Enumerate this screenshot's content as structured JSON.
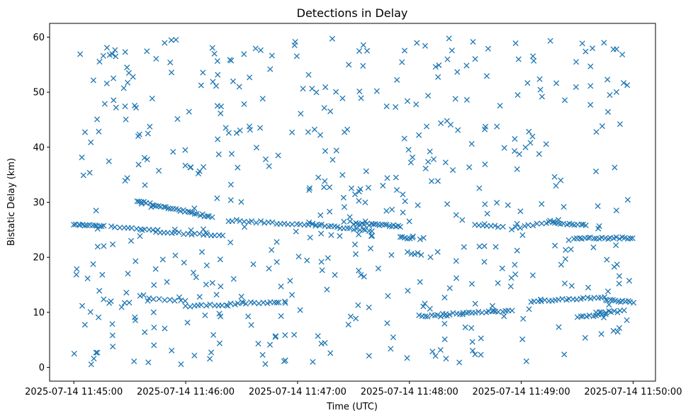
{
  "chart_data": {
    "type": "scatter",
    "title": "Detections in Delay",
    "xlabel": "Time (UTC)",
    "ylabel": "Bistatic Delay (km)",
    "marker": "x",
    "color": "#1f77b4",
    "grid": false,
    "xlim": [
      "2025-07-14 11:44:47",
      "2025-07-14 11:50:12"
    ],
    "ylim": [
      -2.5,
      62.5
    ],
    "x_tick_labels": [
      "2025-07-14 11:45:00",
      "2025-07-14 11:46:00",
      "2025-07-14 11:47:00",
      "2025-07-14 11:48:00",
      "2025-07-14 11:49:00",
      "2025-07-14 11:50:00"
    ],
    "y_tick_values": [
      0,
      10,
      20,
      30,
      40,
      50,
      60
    ],
    "y_tick_labels": [
      "0",
      "10",
      "20",
      "30",
      "40",
      "50",
      "60"
    ],
    "series": [
      {
        "kind": "tracks",
        "description_points": [
          {
            "x": "2025-07-14 11:45:00",
            "y": 26.0
          },
          {
            "x": "2025-07-14 11:45:04",
            "y": 26.0
          },
          {
            "x": "2025-07-14 11:45:08",
            "y": 25.9
          },
          {
            "x": "2025-07-14 11:45:12",
            "y": 25.8
          },
          {
            "x": "2025-07-14 11:45:16",
            "y": 25.7
          },
          {
            "x": "2025-07-14 11:45:28",
            "y": 25.4
          },
          {
            "x": "2025-07-14 11:45:32",
            "y": 25.2
          },
          {
            "x": "2025-07-14 11:45:36",
            "y": 25.1
          },
          {
            "x": "2025-07-14 11:45:40",
            "y": 25.0
          },
          {
            "x": "2025-07-14 11:45:34",
            "y": 30.2
          },
          {
            "x": "2025-07-14 11:45:40",
            "y": 29.9
          },
          {
            "x": "2025-07-14 11:45:46",
            "y": 29.6
          },
          {
            "x": "2025-07-14 11:45:52",
            "y": 29.0
          },
          {
            "x": "2025-07-14 11:45:58",
            "y": 28.5
          },
          {
            "x": "2025-07-14 11:46:04",
            "y": 28.0
          },
          {
            "x": "2025-07-14 11:46:10",
            "y": 27.4
          },
          {
            "x": "2025-07-14 11:45:45",
            "y": 24.6
          },
          {
            "x": "2025-07-14 11:45:55",
            "y": 24.3
          },
          {
            "x": "2025-07-14 11:46:05",
            "y": 24.1
          },
          {
            "x": "2025-07-14 11:46:15",
            "y": 24.0
          },
          {
            "x": "2025-07-14 11:45:45",
            "y": 12.3
          },
          {
            "x": "2025-07-14 11:45:55",
            "y": 11.5
          },
          {
            "x": "2025-07-14 11:46:05",
            "y": 11.1
          },
          {
            "x": "2025-07-14 11:46:20",
            "y": 11.3
          },
          {
            "x": "2025-07-14 11:46:35",
            "y": 11.7
          },
          {
            "x": "2025-07-14 11:46:50",
            "y": 12.0
          },
          {
            "x": "2025-07-14 11:46:25",
            "y": 26.6
          },
          {
            "x": "2025-07-14 11:46:40",
            "y": 26.2
          },
          {
            "x": "2025-07-14 11:47:00",
            "y": 25.8
          },
          {
            "x": "2025-07-14 11:47:20",
            "y": 24.8
          },
          {
            "x": "2025-07-14 11:47:30",
            "y": 26.0
          },
          {
            "x": "2025-07-14 11:47:45",
            "y": 25.6
          },
          {
            "x": "2025-07-14 11:47:53",
            "y": 23.5
          },
          {
            "x": "2025-07-14 11:48:00",
            "y": 20.7
          },
          {
            "x": "2025-07-14 11:48:05",
            "y": 9.3
          },
          {
            "x": "2025-07-14 11:48:20",
            "y": 9.7
          },
          {
            "x": "2025-07-14 11:48:40",
            "y": 10.1
          },
          {
            "x": "2025-07-14 11:48:55",
            "y": 10.4
          },
          {
            "x": "2025-07-14 11:48:40",
            "y": 25.7
          },
          {
            "x": "2025-07-14 11:49:05",
            "y": 26.5
          },
          {
            "x": "2025-07-14 11:49:20",
            "y": 26.0
          },
          {
            "x": "2025-07-14 11:49:35",
            "y": 23.5
          },
          {
            "x": "2025-07-14 11:50:00",
            "y": 23.5
          },
          {
            "x": "2025-07-14 11:49:10",
            "y": 12.2
          },
          {
            "x": "2025-07-14 11:49:25",
            "y": 12.6
          },
          {
            "x": "2025-07-14 11:49:40",
            "y": 10.0
          },
          {
            "x": "2025-07-14 11:49:55",
            "y": 12.2
          }
        ],
        "segments": [
          {
            "t0": 0,
            "t1": 16,
            "y0": 26.0,
            "y1": 25.7,
            "n": 14
          },
          {
            "t0": 20,
            "t1": 45,
            "y0": 25.5,
            "y1": 24.9,
            "n": 12
          },
          {
            "t0": 34,
            "t1": 74,
            "y0": 30.2,
            "y1": 27.3,
            "n": 32
          },
          {
            "t0": 44,
            "t1": 80,
            "y0": 24.7,
            "y1": 23.9,
            "n": 18
          },
          {
            "t0": 40,
            "t1": 60,
            "y0": 12.4,
            "y1": 12.2,
            "n": 8
          },
          {
            "t0": 60,
            "t1": 110,
            "y0": 11.1,
            "y1": 11.9,
            "n": 24
          },
          {
            "t0": 85,
            "t1": 130,
            "y0": 26.7,
            "y1": 25.8,
            "n": 22
          },
          {
            "t0": 128,
            "t1": 160,
            "y0": 26.0,
            "y1": 24.7,
            "n": 20
          },
          {
            "t0": 150,
            "t1": 175,
            "y0": 26.1,
            "y1": 25.7,
            "n": 22
          },
          {
            "t0": 175,
            "t1": 182,
            "y0": 23.7,
            "y1": 23.4,
            "n": 6
          },
          {
            "t0": 179,
            "t1": 186,
            "y0": 20.8,
            "y1": 20.6,
            "n": 5
          },
          {
            "t0": 185,
            "t1": 200,
            "y0": 9.3,
            "y1": 9.4,
            "n": 10
          },
          {
            "t0": 198,
            "t1": 235,
            "y0": 9.6,
            "y1": 10.4,
            "n": 22
          },
          {
            "t0": 215,
            "t1": 230,
            "y0": 25.8,
            "y1": 25.6,
            "n": 8
          },
          {
            "t0": 235,
            "t1": 260,
            "y0": 25.2,
            "y1": 26.8,
            "n": 12
          },
          {
            "t0": 255,
            "t1": 275,
            "y0": 26.3,
            "y1": 25.9,
            "n": 14
          },
          {
            "t0": 268,
            "t1": 300,
            "y0": 23.5,
            "y1": 23.5,
            "n": 22
          },
          {
            "t0": 245,
            "t1": 285,
            "y0": 12.0,
            "y1": 12.7,
            "n": 22
          },
          {
            "t0": 285,
            "t1": 300,
            "y0": 12.2,
            "y1": 11.9,
            "n": 12
          },
          {
            "t0": 270,
            "t1": 285,
            "y0": 9.2,
            "y1": 9.6,
            "n": 10
          },
          {
            "t0": 280,
            "t1": 295,
            "y0": 10.0,
            "y1": 10.2,
            "n": 10
          }
        ]
      },
      {
        "kind": "noise",
        "n": 520,
        "seed": 20250714
      }
    ]
  }
}
